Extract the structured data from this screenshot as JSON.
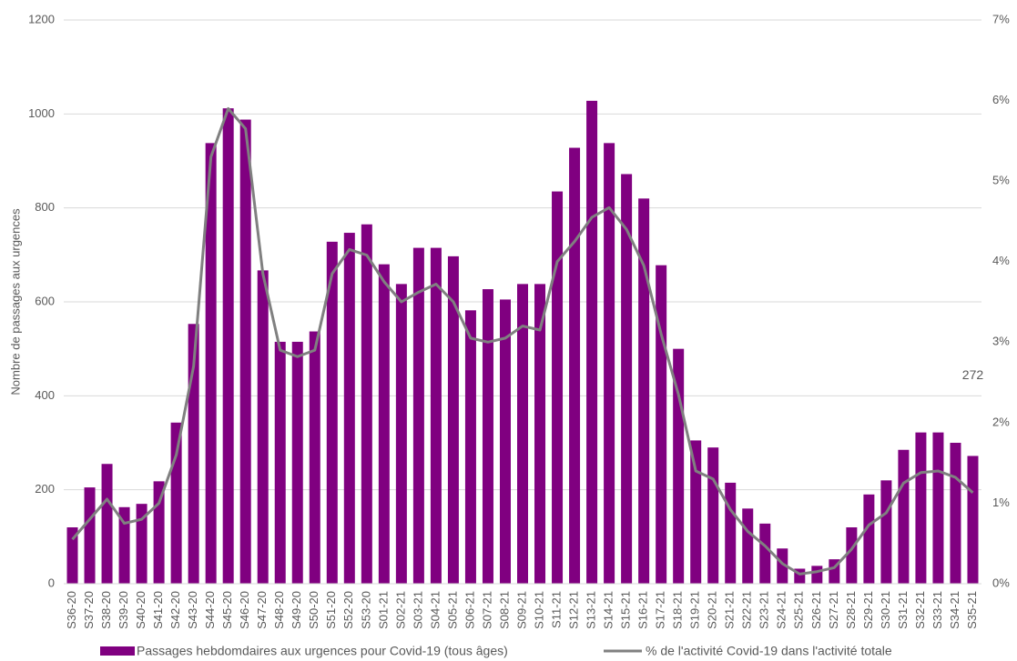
{
  "chart_data": {
    "type": "bar_line",
    "y_label": "Nombre de passages aux urgences",
    "categories": [
      "S36-20",
      "S37-20",
      "S38-20",
      "S39-20",
      "S40-20",
      "S41-20",
      "S42-20",
      "S43-20",
      "S44-20",
      "S45-20",
      "S46-20",
      "S47-20",
      "S48-20",
      "S49-20",
      "S50-20",
      "S51-20",
      "S52-20",
      "S53-20",
      "S01-21",
      "S02-21",
      "S03-21",
      "S04-21",
      "S05-21",
      "S06-21",
      "S07-21",
      "S08-21",
      "S09-21",
      "S10-21",
      "S11-21",
      "S12-21",
      "S13-21",
      "S14-21",
      "S15-21",
      "S16-21",
      "S17-21",
      "S18-21",
      "S19-21",
      "S20-21",
      "S21-21",
      "S22-21",
      "S23-21",
      "S24-21",
      "S25-21",
      "S26-21",
      "S27-21",
      "S28-21",
      "S29-21",
      "S30-21",
      "S31-21",
      "S32-21",
      "S33-21",
      "S34-21",
      "S35-21"
    ],
    "series": [
      {
        "name": "Passages hebdomdaires aux urgences pour Covid-19 (tous âges)",
        "color": "#800080",
        "kind": "bar",
        "values": [
          120,
          205,
          255,
          163,
          170,
          218,
          343,
          553,
          938,
          1012,
          988,
          667,
          515,
          515,
          537,
          728,
          747,
          765,
          680,
          638,
          715,
          715,
          697,
          582,
          627,
          605,
          638,
          638,
          835,
          928,
          1028,
          938,
          872,
          820,
          678,
          500,
          305,
          290,
          215,
          160,
          128,
          75,
          32,
          38,
          52,
          120,
          190,
          220,
          285,
          322,
          322,
          300,
          272
        ],
        "value_labels": [
          null,
          null,
          null,
          null,
          null,
          null,
          null,
          null,
          null,
          null,
          null,
          null,
          null,
          null,
          null,
          null,
          null,
          null,
          null,
          null,
          null,
          null,
          null,
          null,
          null,
          null,
          null,
          null,
          null,
          null,
          null,
          null,
          null,
          null,
          null,
          null,
          null,
          null,
          null,
          null,
          null,
          null,
          null,
          null,
          null,
          null,
          null,
          null,
          null,
          null,
          null,
          null,
          "272"
        ]
      },
      {
        "name": "% de l'activité Covid-19 dans l'activité totale",
        "color": "#808080",
        "kind": "line",
        "axis": "y2",
        "values": [
          0.55,
          0.8,
          1.05,
          0.75,
          0.8,
          1.0,
          1.6,
          2.7,
          5.3,
          5.9,
          5.65,
          3.85,
          2.9,
          2.82,
          2.9,
          3.85,
          4.15,
          4.08,
          3.75,
          3.5,
          3.62,
          3.72,
          3.5,
          3.05,
          3.0,
          3.05,
          3.2,
          3.15,
          4.0,
          4.25,
          4.55,
          4.67,
          4.4,
          3.95,
          3.1,
          2.35,
          1.4,
          1.3,
          0.92,
          0.65,
          0.47,
          0.25,
          0.12,
          0.15,
          0.2,
          0.43,
          0.73,
          0.88,
          1.25,
          1.38,
          1.4,
          1.32,
          1.13
        ]
      }
    ],
    "ylim": [
      0,
      1200
    ],
    "yticks": [
      0,
      200,
      400,
      600,
      800,
      1000,
      1200
    ],
    "y2lim": [
      0,
      7
    ],
    "y2ticks": [
      {
        "value": 0,
        "label": "0%"
      },
      {
        "value": 1,
        "label": "1%"
      },
      {
        "value": 2,
        "label": "2%"
      },
      {
        "value": 3,
        "label": "3%"
      },
      {
        "value": 4,
        "label": "4%"
      },
      {
        "value": 5,
        "label": "5%"
      },
      {
        "value": 6,
        "label": "6%"
      },
      {
        "value": 7,
        "label": "7%"
      }
    ],
    "grid": true
  }
}
